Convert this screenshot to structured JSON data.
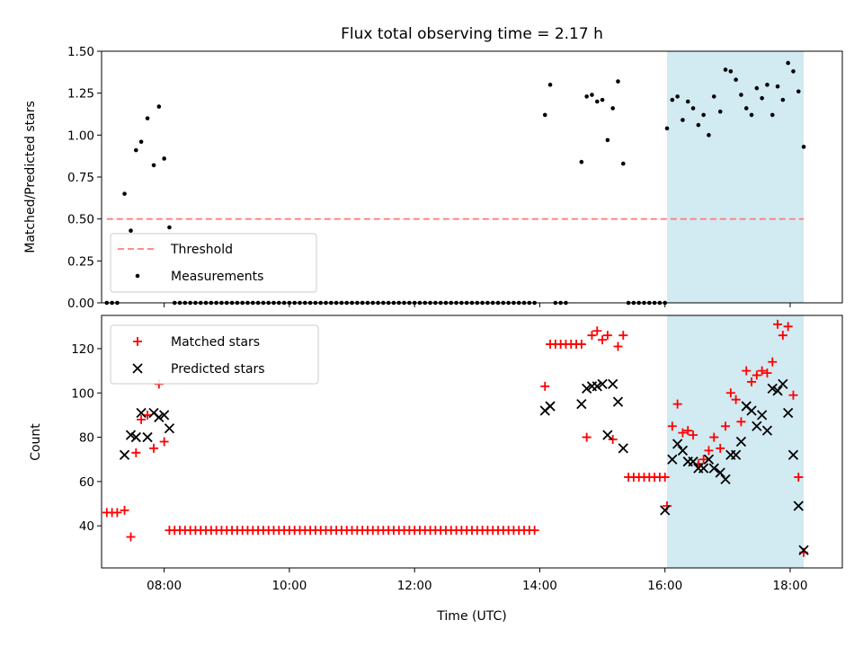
{
  "colors": {
    "threshold": "#ff7f7f",
    "measurement": "#000000",
    "matched": "#ff0000",
    "predicted": "#000000",
    "highlight": "#add8e6"
  },
  "chart_data": [
    {
      "type": "scatter",
      "title": "Flux total observing time = 2.17 h",
      "xlabel": "",
      "ylabel": "Matched/Predicted stars",
      "xlim": [
        "07:00",
        "18:50"
      ],
      "ylim": [
        0,
        1.5
      ],
      "yticks": [
        "0.00",
        "0.25",
        "0.50",
        "0.75",
        "1.00",
        "1.25",
        "1.50"
      ],
      "xticks": [
        "08:00",
        "10:00",
        "12:00",
        "14:00",
        "16:00",
        "18:00"
      ],
      "show_xtick_labels": false,
      "highlight_span": [
        "16:02",
        "18:13"
      ],
      "legend": {
        "position": "lower-left",
        "entries": [
          "Threshold",
          "Measurements"
        ]
      },
      "series": [
        {
          "name": "Threshold",
          "kind": "dashed-line",
          "x": [
            "07:05",
            "18:13"
          ],
          "y": [
            0.5,
            0.5
          ]
        },
        {
          "name": "Measurements",
          "kind": "points",
          "x": [
            "07:05",
            "07:10",
            "07:15",
            "07:22",
            "07:28",
            "07:33",
            "07:38",
            "07:44",
            "07:50",
            "07:55",
            "08:00",
            "08:05",
            "14:05",
            "14:10",
            "14:15",
            "14:20",
            "14:25",
            "14:40",
            "14:45",
            "14:50",
            "14:55",
            "15:00",
            "15:05",
            "15:10",
            "15:15",
            "15:20",
            "15:25",
            "15:30",
            "15:35",
            "15:40",
            "15:45",
            "15:50",
            "15:55",
            "16:00",
            "16:02",
            "16:07",
            "16:12",
            "16:17",
            "16:22",
            "16:27",
            "16:32",
            "16:37",
            "16:42",
            "16:47",
            "16:53",
            "16:58",
            "17:03",
            "17:08",
            "17:13",
            "17:18",
            "17:23",
            "17:28",
            "17:33",
            "17:38",
            "17:43",
            "17:48",
            "17:53",
            "17:58",
            "18:03",
            "18:08",
            "18:13"
          ],
          "y": [
            0,
            0,
            0,
            0.65,
            0.43,
            0.91,
            0.96,
            1.1,
            0.82,
            1.17,
            0.86,
            0.45,
            1.12,
            1.3,
            0,
            0,
            0,
            0.84,
            1.23,
            1.24,
            1.2,
            1.21,
            0.97,
            1.16,
            1.32,
            0.83,
            0,
            0,
            0,
            0,
            0,
            0,
            0,
            0,
            1.04,
            1.21,
            1.23,
            1.09,
            1.2,
            1.16,
            1.06,
            1.12,
            1.0,
            1.23,
            1.14,
            1.39,
            1.38,
            1.33,
            1.24,
            1.16,
            1.12,
            1.28,
            1.22,
            1.3,
            1.12,
            1.29,
            1.21,
            1.43,
            1.38,
            1.26,
            0.93
          ],
          "zero_run": {
            "from": "08:10",
            "to": "13:55",
            "step_minutes": 5,
            "y": 0
          }
        }
      ]
    },
    {
      "type": "scatter",
      "title": "",
      "xlabel": "Time (UTC)",
      "ylabel": "Count",
      "xlim": [
        "07:00",
        "18:50"
      ],
      "ylim": [
        21,
        135
      ],
      "yticks": [
        "40",
        "60",
        "80",
        "100",
        "120"
      ],
      "xticks": [
        "08:00",
        "10:00",
        "12:00",
        "14:00",
        "16:00",
        "18:00"
      ],
      "highlight_span": [
        "16:02",
        "18:13"
      ],
      "legend": {
        "position": "top-left",
        "entries": [
          "Matched stars",
          "Predicted stars"
        ]
      },
      "series": [
        {
          "name": "Matched stars",
          "marker": "plus",
          "x": [
            "07:05",
            "07:10",
            "07:15",
            "07:22",
            "07:28",
            "07:33",
            "07:38",
            "07:44",
            "07:50",
            "07:55",
            "08:00",
            "08:05",
            "14:05",
            "14:10",
            "14:15",
            "14:20",
            "14:25",
            "14:30",
            "14:35",
            "14:40",
            "14:45",
            "14:50",
            "14:55",
            "15:00",
            "15:05",
            "15:10",
            "15:15",
            "15:20",
            "15:25",
            "15:30",
            "15:35",
            "15:40",
            "15:45",
            "15:50",
            "15:55",
            "16:00",
            "16:02",
            "16:07",
            "16:12",
            "16:17",
            "16:22",
            "16:27",
            "16:32",
            "16:37",
            "16:42",
            "16:47",
            "16:53",
            "16:58",
            "17:03",
            "17:08",
            "17:13",
            "17:18",
            "17:23",
            "17:28",
            "17:33",
            "17:38",
            "17:43",
            "17:48",
            "17:53",
            "17:58",
            "18:03",
            "18:08",
            "18:13"
          ],
          "y": [
            46,
            46,
            46,
            47,
            35,
            73,
            88,
            90,
            75,
            104,
            78,
            38,
            103,
            122,
            122,
            122,
            122,
            122,
            122,
            122,
            80,
            126,
            128,
            124,
            126,
            79,
            121,
            126,
            62,
            62,
            62,
            62,
            62,
            62,
            62,
            62,
            49,
            85,
            95,
            82,
            83,
            81,
            68,
            70,
            74,
            80,
            75,
            85,
            100,
            97,
            87,
            110,
            105,
            108,
            110,
            109,
            114,
            131,
            126,
            130,
            99,
            62,
            28
          ],
          "zero_run": {
            "from": "08:10",
            "to": "13:55",
            "step_minutes": 5,
            "y": 38
          }
        },
        {
          "name": "Predicted stars",
          "marker": "x",
          "x": [
            "07:22",
            "07:28",
            "07:33",
            "07:38",
            "07:44",
            "07:50",
            "07:55",
            "08:00",
            "08:05",
            "14:05",
            "14:10",
            "14:40",
            "14:45",
            "14:50",
            "14:55",
            "15:00",
            "15:05",
            "15:10",
            "15:15",
            "15:20",
            "16:00",
            "16:07",
            "16:12",
            "16:17",
            "16:22",
            "16:27",
            "16:32",
            "16:37",
            "16:42",
            "16:47",
            "16:53",
            "16:58",
            "17:03",
            "17:08",
            "17:13",
            "17:18",
            "17:23",
            "17:28",
            "17:33",
            "17:38",
            "17:43",
            "17:48",
            "17:53",
            "17:58",
            "18:03",
            "18:08",
            "18:13"
          ],
          "y": [
            72,
            81,
            80,
            91,
            80,
            91,
            89,
            90,
            84,
            92,
            94,
            95,
            102,
            103,
            103,
            104,
            81,
            104,
            96,
            75,
            47,
            70,
            77,
            74,
            69,
            69,
            66,
            66,
            70,
            66,
            64,
            61,
            72,
            72,
            78,
            94,
            92,
            85,
            90,
            83,
            102,
            101,
            104,
            91,
            72,
            49,
            29
          ]
        }
      ]
    }
  ]
}
